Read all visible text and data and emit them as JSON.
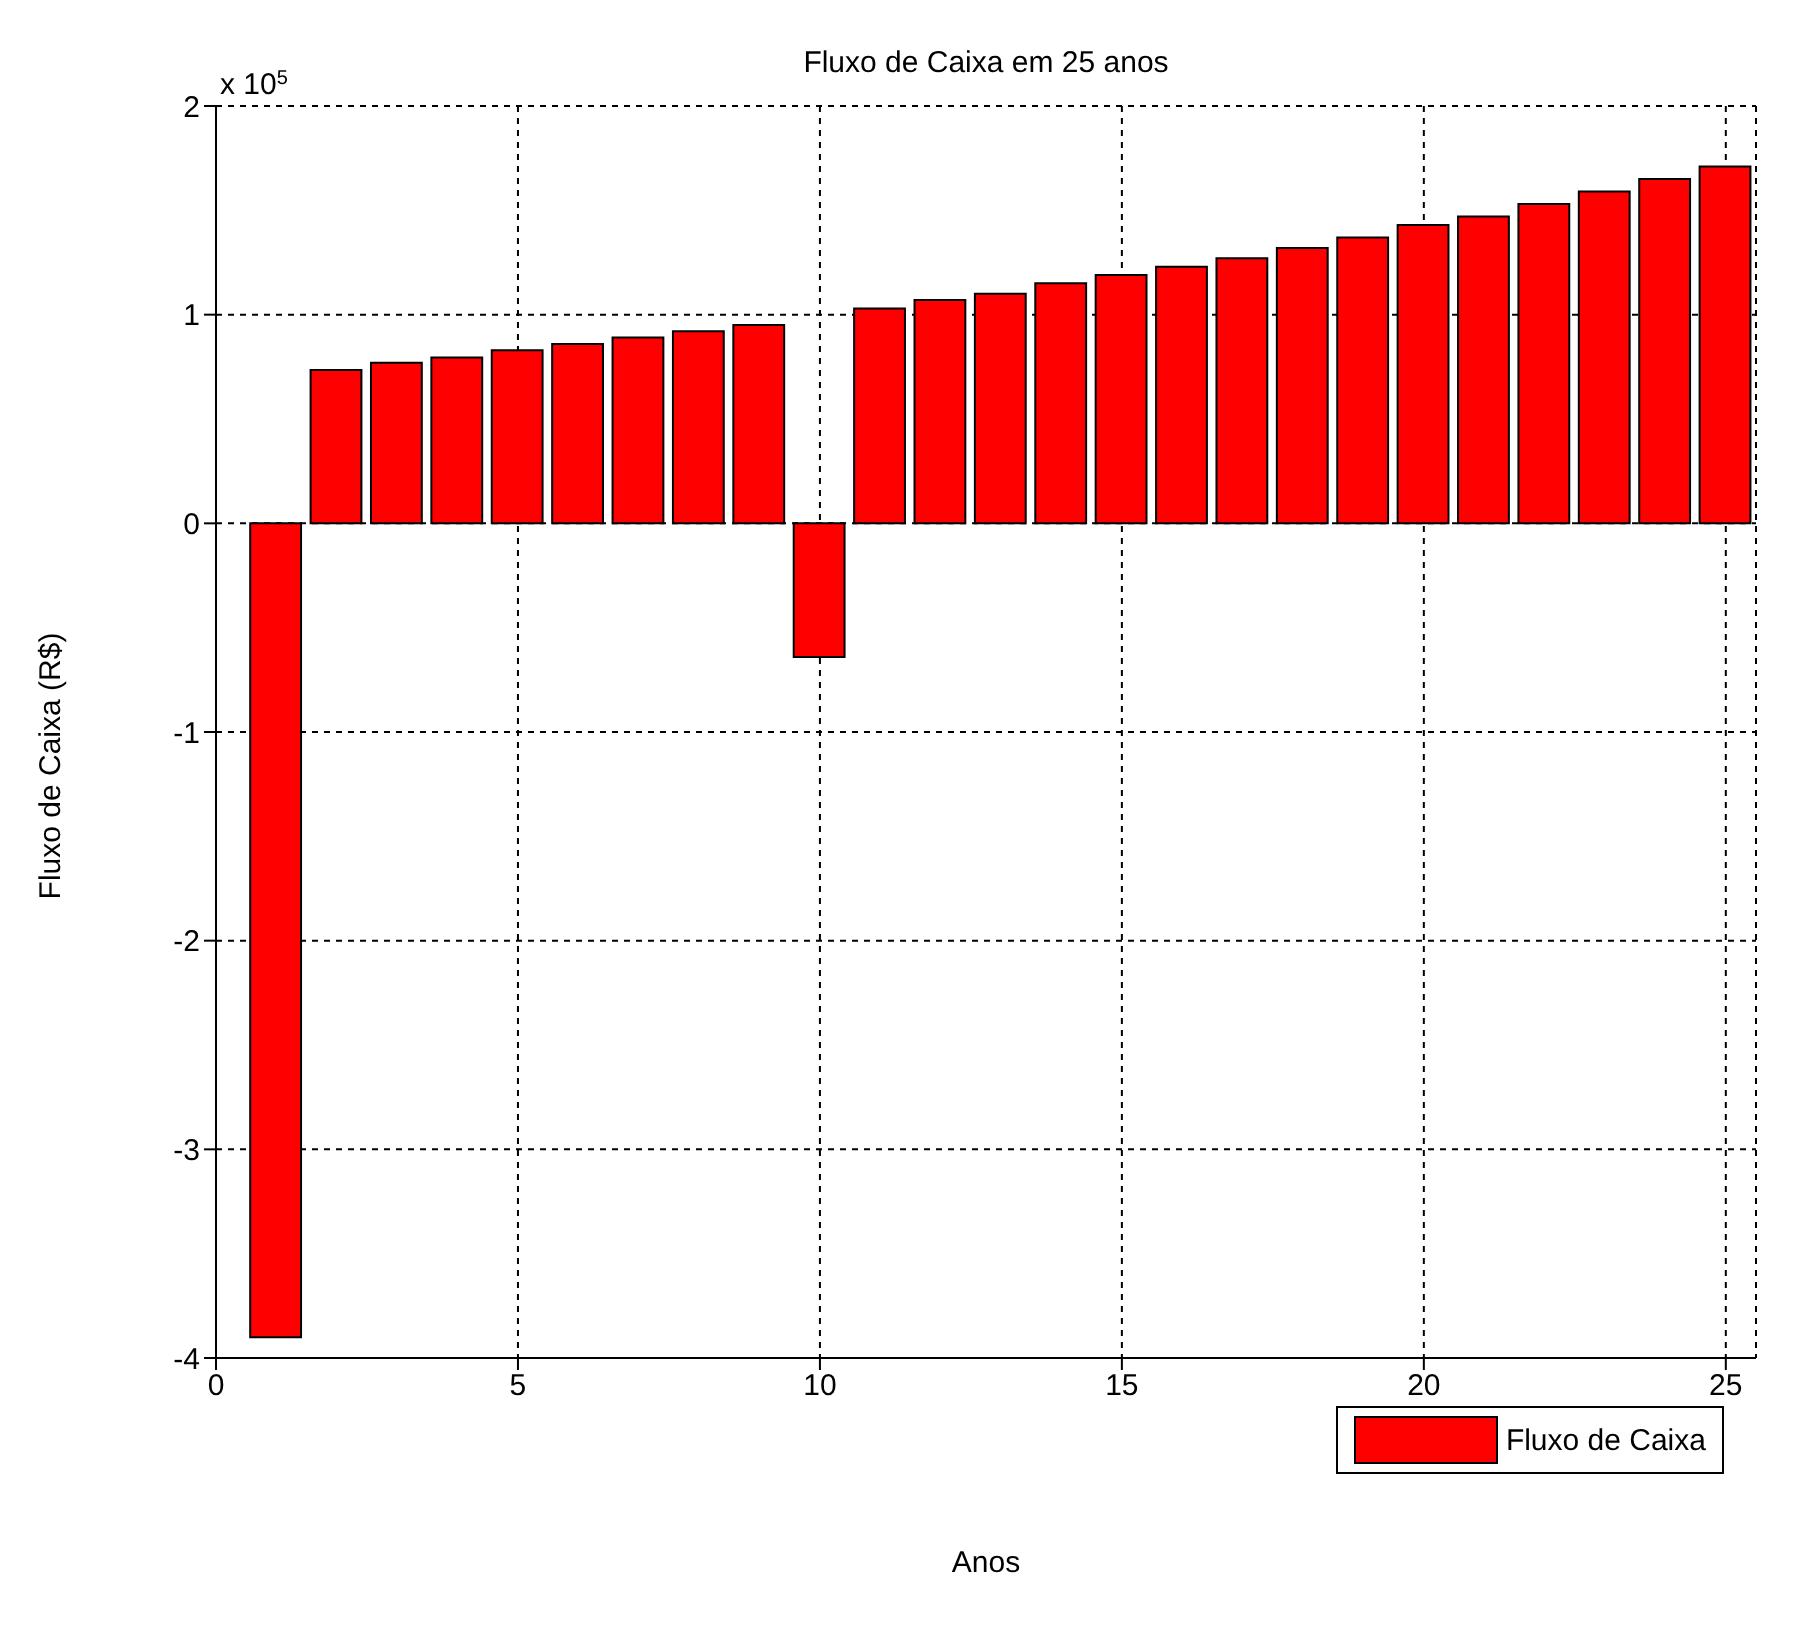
{
  "chart_data": {
    "type": "bar",
    "title": "Fluxo de Caixa em 25 anos",
    "xlabel": "Anos",
    "ylabel": "Fluxo de Caixa (R$)",
    "annotations": [
      "x 10$^{5}$"
    ],
    "x": [
      1,
      2,
      3,
      4,
      5,
      6,
      7,
      8,
      9,
      10,
      11,
      12,
      13,
      14,
      15,
      16,
      17,
      18,
      19,
      20,
      21,
      22,
      23,
      24,
      25
    ],
    "series": [
      {
        "name": "Fluxo de Caixa",
        "color": "#ff0000",
        "values": [
          -3.9,
          0.735,
          0.77,
          0.795,
          0.83,
          0.86,
          0.89,
          0.92,
          0.95,
          -0.64,
          1.03,
          1.07,
          1.1,
          1.15,
          1.19,
          1.23,
          1.27,
          1.32,
          1.37,
          1.43,
          1.47,
          1.53,
          1.59,
          1.65,
          1.71
        ]
      }
    ],
    "xlim": [
      0,
      25.5
    ],
    "xticks": [
      0,
      5,
      10,
      15,
      20,
      25
    ],
    "ylim": [
      -4,
      2
    ],
    "yticks": [
      -4,
      -3,
      -2,
      -1,
      0,
      1,
      2
    ],
    "grid": true,
    "legend": "bottom right"
  }
}
